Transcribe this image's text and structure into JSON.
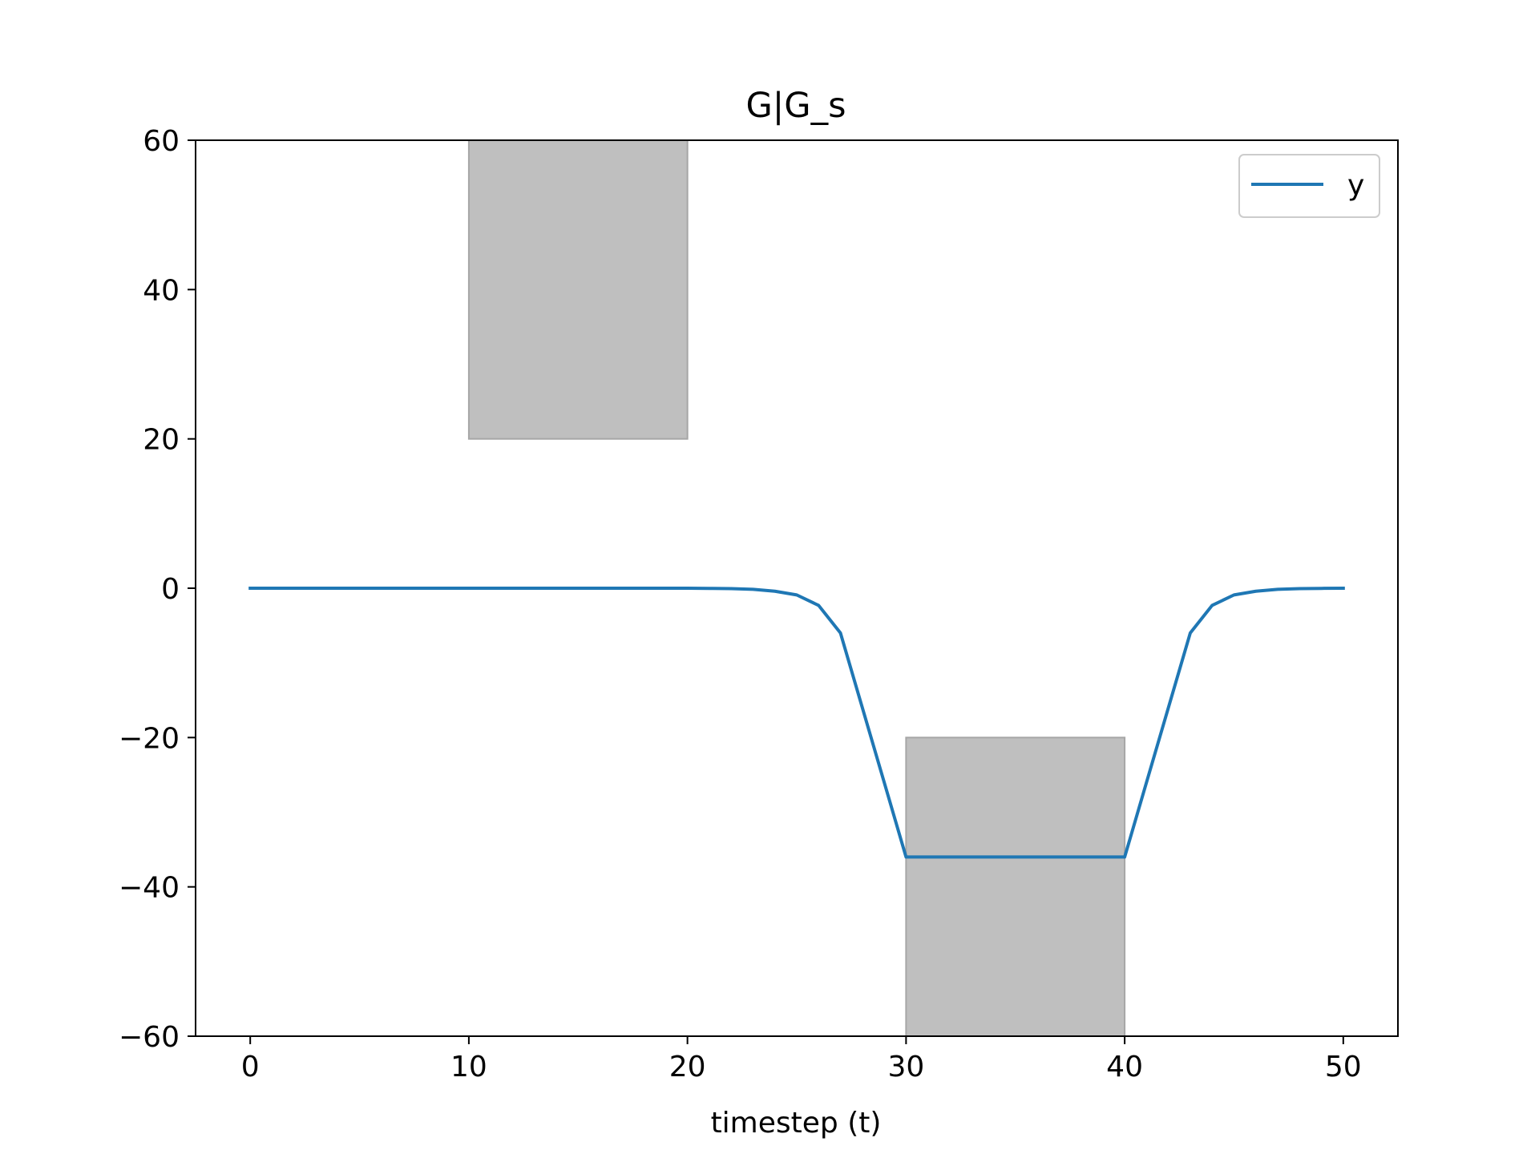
{
  "chart_data": {
    "type": "line",
    "title": "G|G_s",
    "xlabel": "timestep (t)",
    "ylabel": "",
    "xlim": [
      -2.5,
      52.5
    ],
    "ylim": [
      -60,
      60
    ],
    "xticks": [
      0,
      10,
      20,
      30,
      40,
      50
    ],
    "yticks": [
      -60,
      -40,
      -20,
      0,
      20,
      40,
      60
    ],
    "grid": false,
    "legend": {
      "position": "top-right",
      "entries": [
        "y"
      ]
    },
    "series": [
      {
        "name": "y",
        "color": "#1f77b4",
        "x": [
          0,
          1,
          2,
          3,
          4,
          5,
          6,
          7,
          8,
          9,
          10,
          11,
          12,
          13,
          14,
          15,
          16,
          17,
          18,
          19,
          20,
          21,
          22,
          23,
          24,
          25,
          26,
          27,
          28,
          29,
          30,
          31,
          32,
          33,
          34,
          35,
          36,
          37,
          38,
          39,
          40,
          41,
          42,
          43,
          44,
          45,
          46,
          47,
          48,
          49,
          50
        ],
        "y": [
          0,
          0,
          0,
          0,
          0,
          0,
          0,
          0,
          0,
          0,
          0,
          0,
          0,
          0,
          0,
          0,
          0,
          0,
          0,
          0,
          0,
          -0.02,
          -0.05,
          -0.15,
          -0.4,
          -0.9,
          -2.3,
          -6,
          -16,
          -26,
          -36,
          -36,
          -36,
          -36,
          -36,
          -36,
          -36,
          -36,
          -36,
          -36,
          -36,
          -26,
          -16,
          -6,
          -2.3,
          -0.9,
          -0.4,
          -0.15,
          -0.05,
          -0.02,
          0
        ]
      }
    ],
    "regions": [
      {
        "x": [
          10,
          20
        ],
        "y": [
          20,
          60
        ],
        "color": "#bfbfbf"
      },
      {
        "x": [
          30,
          40
        ],
        "y": [
          -60,
          -20
        ],
        "color": "#bfbfbf"
      }
    ]
  }
}
